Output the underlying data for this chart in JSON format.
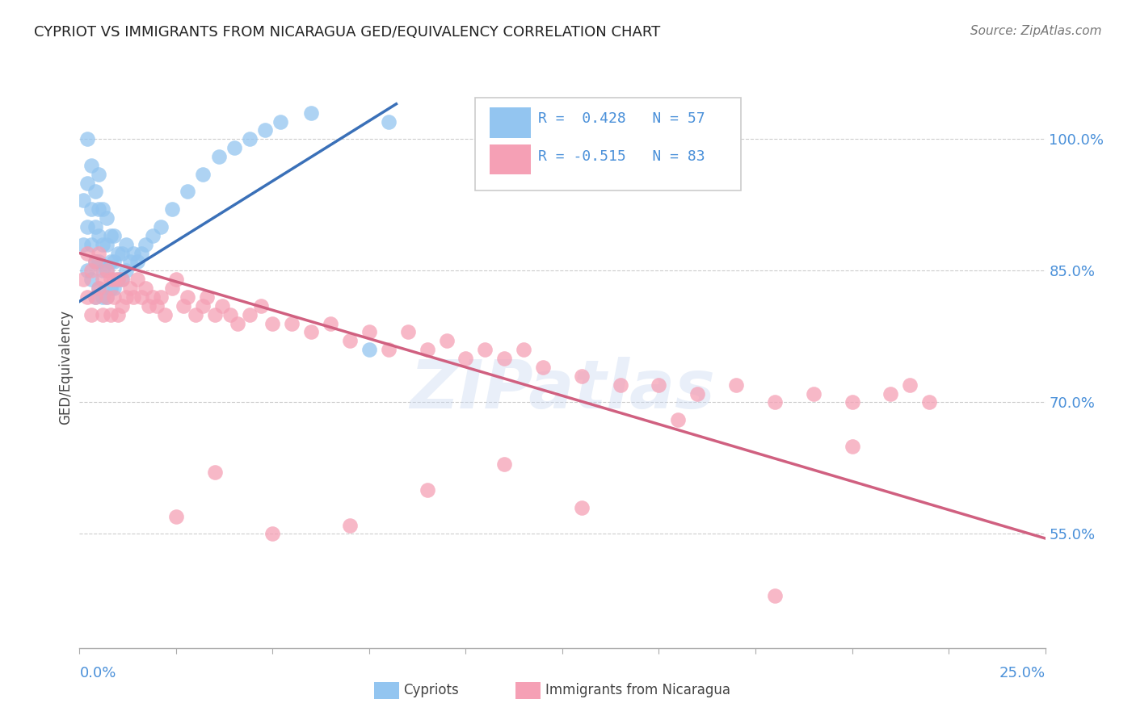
{
  "title": "CYPRIOT VS IMMIGRANTS FROM NICARAGUA GED/EQUIVALENCY CORRELATION CHART",
  "source": "Source: ZipAtlas.com",
  "ylabel": "GED/Equivalency",
  "ytick_values": [
    0.55,
    0.7,
    0.85,
    1.0
  ],
  "ytick_labels": [
    "55.0%",
    "70.0%",
    "85.0%",
    "100.0%"
  ],
  "xmin": 0.0,
  "xmax": 0.25,
  "ymin": 0.42,
  "ymax": 1.06,
  "blue_color": "#93C5F0",
  "pink_color": "#F5A0B5",
  "blue_line_color": "#3A70B8",
  "pink_line_color": "#D06080",
  "watermark": "ZIPatlas",
  "blue_scatter_x": [
    0.001,
    0.001,
    0.002,
    0.002,
    0.002,
    0.002,
    0.003,
    0.003,
    0.003,
    0.003,
    0.004,
    0.004,
    0.004,
    0.004,
    0.005,
    0.005,
    0.005,
    0.005,
    0.005,
    0.006,
    0.006,
    0.006,
    0.006,
    0.007,
    0.007,
    0.007,
    0.007,
    0.008,
    0.008,
    0.008,
    0.009,
    0.009,
    0.009,
    0.01,
    0.01,
    0.011,
    0.011,
    0.012,
    0.012,
    0.013,
    0.014,
    0.015,
    0.016,
    0.017,
    0.019,
    0.021,
    0.024,
    0.028,
    0.032,
    0.036,
    0.04,
    0.044,
    0.048,
    0.052,
    0.06,
    0.075,
    0.08
  ],
  "blue_scatter_y": [
    0.88,
    0.93,
    0.85,
    0.9,
    0.95,
    1.0,
    0.84,
    0.88,
    0.92,
    0.97,
    0.82,
    0.86,
    0.9,
    0.94,
    0.83,
    0.86,
    0.89,
    0.92,
    0.96,
    0.82,
    0.85,
    0.88,
    0.92,
    0.82,
    0.85,
    0.88,
    0.91,
    0.83,
    0.86,
    0.89,
    0.83,
    0.86,
    0.89,
    0.84,
    0.87,
    0.84,
    0.87,
    0.85,
    0.88,
    0.86,
    0.87,
    0.86,
    0.87,
    0.88,
    0.89,
    0.9,
    0.92,
    0.94,
    0.96,
    0.98,
    0.99,
    1.0,
    1.01,
    1.02,
    1.03,
    0.76,
    1.02
  ],
  "blue_line_x": [
    0.0,
    0.082
  ],
  "blue_line_y": [
    0.815,
    1.04
  ],
  "pink_line_x": [
    0.0,
    0.25
  ],
  "pink_line_y": [
    0.87,
    0.545
  ],
  "pink_scatter_x": [
    0.001,
    0.002,
    0.002,
    0.003,
    0.003,
    0.004,
    0.004,
    0.005,
    0.005,
    0.006,
    0.006,
    0.007,
    0.007,
    0.008,
    0.008,
    0.009,
    0.009,
    0.01,
    0.01,
    0.011,
    0.011,
    0.012,
    0.013,
    0.014,
    0.015,
    0.016,
    0.017,
    0.018,
    0.019,
    0.02,
    0.021,
    0.022,
    0.024,
    0.025,
    0.027,
    0.028,
    0.03,
    0.032,
    0.033,
    0.035,
    0.037,
    0.039,
    0.041,
    0.044,
    0.047,
    0.05,
    0.055,
    0.06,
    0.065,
    0.07,
    0.075,
    0.08,
    0.085,
    0.09,
    0.095,
    0.1,
    0.105,
    0.11,
    0.115,
    0.12,
    0.13,
    0.14,
    0.15,
    0.16,
    0.17,
    0.18,
    0.19,
    0.2,
    0.21,
    0.215,
    0.22,
    0.025,
    0.035,
    0.05,
    0.07,
    0.09,
    0.11,
    0.13,
    0.155,
    0.18,
    0.2
  ],
  "pink_scatter_y": [
    0.84,
    0.82,
    0.87,
    0.8,
    0.85,
    0.82,
    0.86,
    0.83,
    0.87,
    0.8,
    0.84,
    0.82,
    0.85,
    0.8,
    0.84,
    0.82,
    0.84,
    0.8,
    0.84,
    0.81,
    0.84,
    0.82,
    0.83,
    0.82,
    0.84,
    0.82,
    0.83,
    0.81,
    0.82,
    0.81,
    0.82,
    0.8,
    0.83,
    0.84,
    0.81,
    0.82,
    0.8,
    0.81,
    0.82,
    0.8,
    0.81,
    0.8,
    0.79,
    0.8,
    0.81,
    0.79,
    0.79,
    0.78,
    0.79,
    0.77,
    0.78,
    0.76,
    0.78,
    0.76,
    0.77,
    0.75,
    0.76,
    0.75,
    0.76,
    0.74,
    0.73,
    0.72,
    0.72,
    0.71,
    0.72,
    0.7,
    0.71,
    0.7,
    0.71,
    0.72,
    0.7,
    0.57,
    0.62,
    0.55,
    0.56,
    0.6,
    0.63,
    0.58,
    0.68,
    0.48,
    0.65
  ]
}
